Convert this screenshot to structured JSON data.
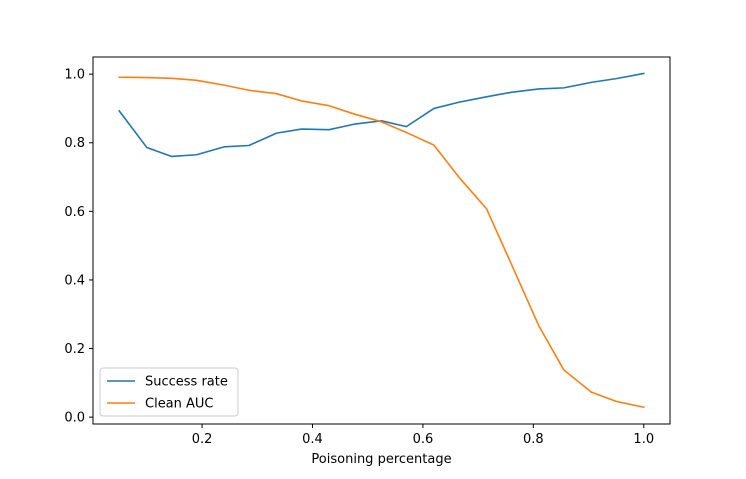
{
  "chart_data": {
    "type": "line",
    "title": "",
    "xlabel": "Poisoning percentage",
    "ylabel": "",
    "xlim": [
      0.0025,
      1.0475
    ],
    "ylim": [
      -0.02,
      1.05
    ],
    "xticks": [
      0.2,
      0.4,
      0.6,
      0.8,
      1.0
    ],
    "xtick_labels": [
      "0.2",
      "0.4",
      "0.6",
      "0.8",
      "1.0"
    ],
    "yticks": [
      0.0,
      0.2,
      0.4,
      0.6,
      0.8,
      1.0
    ],
    "ytick_labels": [
      "0.0",
      "0.2",
      "0.4",
      "0.6",
      "0.8",
      "1.0"
    ],
    "grid": false,
    "legend_position": "lower-left",
    "x": [
      0.05,
      0.1,
      0.145,
      0.19,
      0.24,
      0.285,
      0.335,
      0.38,
      0.43,
      0.475,
      0.525,
      0.57,
      0.62,
      0.665,
      0.715,
      0.76,
      0.81,
      0.855,
      0.905,
      0.95,
      1.0
    ],
    "series": [
      {
        "name": "Success rate",
        "color": "#1f77b4",
        "values": [
          0.893,
          0.786,
          0.76,
          0.765,
          0.788,
          0.792,
          0.828,
          0.84,
          0.838,
          0.854,
          0.864,
          0.847,
          0.9,
          0.918,
          0.934,
          0.947,
          0.957,
          0.96,
          0.976,
          0.987,
          1.002
        ]
      },
      {
        "name": "Clean AUC",
        "color": "#ff7f0e",
        "values": [
          0.991,
          0.99,
          0.988,
          0.982,
          0.968,
          0.953,
          0.943,
          0.922,
          0.908,
          0.884,
          0.861,
          0.83,
          0.793,
          0.7,
          0.608,
          0.447,
          0.266,
          0.138,
          0.073,
          0.046,
          0.029
        ]
      }
    ]
  }
}
